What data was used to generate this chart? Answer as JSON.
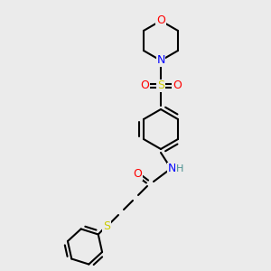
{
  "bg_color": "#ebebeb",
  "bond_color": "#000000",
  "bond_lw": 1.5,
  "atom_colors": {
    "O": "#ff0000",
    "N": "#0000ff",
    "S": "#cccc00",
    "H": "#4a9090",
    "C": "#000000"
  },
  "font_size": 9,
  "font_size_small": 8
}
